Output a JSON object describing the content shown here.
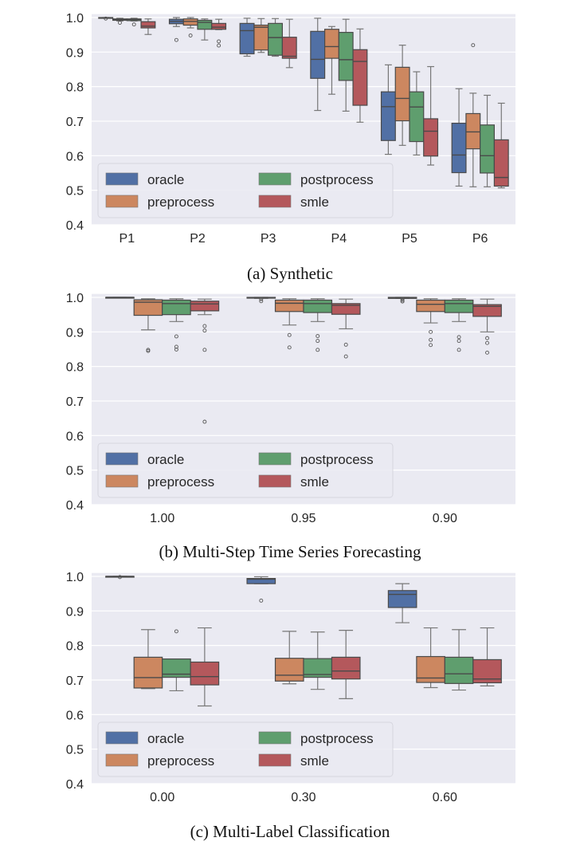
{
  "colors": {
    "oracle": "#5170a5",
    "preprocess": "#cc8760",
    "postprocess": "#5f9e6e",
    "smle": "#b4585c",
    "background": "#eaeaf2",
    "grid": "#ffffff"
  },
  "chart_data": [
    {
      "type": "box",
      "caption": "(a) Synthetic",
      "ylim": [
        0.4,
        1.01
      ],
      "yticks": [
        "0.4",
        "0.5",
        "0.6",
        "0.7",
        "0.8",
        "0.9",
        "1.0"
      ],
      "categories": [
        "P1",
        "P2",
        "P3",
        "P4",
        "P5",
        "P6"
      ],
      "legend": [
        "oracle",
        "preprocess",
        "postprocess",
        "smle"
      ],
      "legend_position": "lower-left",
      "grid": true,
      "series": [
        {
          "name": "oracle",
          "boxes": [
            {
              "lo": 0.998,
              "q1": 0.999,
              "med": 0.999,
              "q3": 1.0,
              "hi": 1.0,
              "out": [
                0.997
              ]
            },
            {
              "lo": 0.974,
              "q1": 0.982,
              "med": 0.989,
              "q3": 0.995,
              "hi": 1.0,
              "out": [
                0.935
              ]
            },
            {
              "lo": 0.888,
              "q1": 0.895,
              "med": 0.962,
              "q3": 0.983,
              "hi": 0.998,
              "out": []
            },
            {
              "lo": 0.731,
              "q1": 0.824,
              "med": 0.879,
              "q3": 0.96,
              "hi": 0.998,
              "out": []
            },
            {
              "lo": 0.604,
              "q1": 0.644,
              "med": 0.742,
              "q3": 0.785,
              "hi": 0.863,
              "out": []
            },
            {
              "lo": 0.512,
              "q1": 0.551,
              "med": 0.602,
              "q3": 0.694,
              "hi": 0.794,
              "out": []
            }
          ]
        },
        {
          "name": "preprocess",
          "boxes": [
            {
              "lo": 0.99,
              "q1": 0.992,
              "med": 0.994,
              "q3": 0.996,
              "hi": 0.998,
              "out": [
                0.985
              ]
            },
            {
              "lo": 0.97,
              "q1": 0.978,
              "med": 0.989,
              "q3": 0.996,
              "hi": 1.0,
              "out": [
                0.948
              ]
            },
            {
              "lo": 0.899,
              "q1": 0.906,
              "med": 0.972,
              "q3": 0.978,
              "hi": 0.997,
              "out": []
            },
            {
              "lo": 0.778,
              "q1": 0.882,
              "med": 0.916,
              "q3": 0.966,
              "hi": 0.974,
              "out": []
            },
            {
              "lo": 0.63,
              "q1": 0.701,
              "med": 0.766,
              "q3": 0.856,
              "hi": 0.92,
              "out": []
            },
            {
              "lo": 0.51,
              "q1": 0.62,
              "med": 0.669,
              "q3": 0.722,
              "hi": 0.781,
              "out": [
                0.92
              ]
            }
          ]
        },
        {
          "name": "postprocess",
          "boxes": [
            {
              "lo": 0.99,
              "q1": 0.991,
              "med": 0.994,
              "q3": 0.996,
              "hi": 0.998,
              "out": [
                0.98
              ]
            },
            {
              "lo": 0.935,
              "q1": 0.966,
              "med": 0.986,
              "q3": 0.992,
              "hi": 0.996,
              "out": []
            },
            {
              "lo": 0.888,
              "q1": 0.891,
              "med": 0.942,
              "q3": 0.983,
              "hi": 0.997,
              "out": []
            },
            {
              "lo": 0.729,
              "q1": 0.818,
              "med": 0.878,
              "q3": 0.957,
              "hi": 0.995,
              "out": []
            },
            {
              "lo": 0.602,
              "q1": 0.641,
              "med": 0.741,
              "q3": 0.785,
              "hi": 0.843,
              "out": []
            },
            {
              "lo": 0.51,
              "q1": 0.55,
              "med": 0.6,
              "q3": 0.689,
              "hi": 0.775,
              "out": []
            }
          ]
        },
        {
          "name": "smle",
          "boxes": [
            {
              "lo": 0.951,
              "q1": 0.97,
              "med": 0.975,
              "q3": 0.988,
              "hi": 0.996,
              "out": []
            },
            {
              "lo": 0.965,
              "q1": 0.966,
              "med": 0.972,
              "q3": 0.983,
              "hi": 0.995,
              "out": [
                0.931,
                0.919
              ]
            },
            {
              "lo": 0.855,
              "q1": 0.882,
              "med": 0.888,
              "q3": 0.943,
              "hi": 0.995,
              "out": []
            },
            {
              "lo": 0.697,
              "q1": 0.746,
              "med": 0.873,
              "q3": 0.907,
              "hi": 0.967,
              "out": []
            },
            {
              "lo": 0.573,
              "q1": 0.599,
              "med": 0.671,
              "q3": 0.707,
              "hi": 0.858,
              "out": []
            },
            {
              "lo": 0.507,
              "q1": 0.512,
              "med": 0.537,
              "q3": 0.646,
              "hi": 0.752,
              "out": []
            }
          ]
        }
      ]
    },
    {
      "type": "box",
      "caption": "(b) Multi-Step Time Series Forecasting",
      "ylim": [
        0.4,
        1.01
      ],
      "yticks": [
        "0.4",
        "0.5",
        "0.6",
        "0.7",
        "0.8",
        "0.9",
        "1.0"
      ],
      "categories": [
        "1.00",
        "0.95",
        "0.90"
      ],
      "legend": [
        "oracle",
        "preprocess",
        "postprocess",
        "smle"
      ],
      "legend_position": "lower-left",
      "grid": true,
      "series": [
        {
          "name": "oracle",
          "boxes": [
            {
              "lo": 0.999,
              "q1": 0.999,
              "med": 1.0,
              "q3": 1.0,
              "hi": 1.0,
              "out": []
            },
            {
              "lo": 0.997,
              "q1": 0.998,
              "med": 0.999,
              "q3": 1.0,
              "hi": 1.0,
              "out": [
                0.995,
                0.989
              ]
            },
            {
              "lo": 0.997,
              "q1": 0.997,
              "med": 0.999,
              "q3": 1.0,
              "hi": 1.0,
              "out": [
                0.995,
                0.991,
                0.988
              ]
            }
          ]
        },
        {
          "name": "preprocess",
          "boxes": [
            {
              "lo": 0.906,
              "q1": 0.948,
              "med": 0.986,
              "q3": 0.993,
              "hi": 0.996,
              "out": [
                0.848,
                0.845
              ]
            },
            {
              "lo": 0.92,
              "q1": 0.959,
              "med": 0.983,
              "q3": 0.992,
              "hi": 0.996,
              "out": [
                0.891,
                0.855
              ]
            },
            {
              "lo": 0.926,
              "q1": 0.959,
              "med": 0.98,
              "q3": 0.992,
              "hi": 0.996,
              "out": [
                0.9,
                0.877,
                0.862
              ]
            }
          ]
        },
        {
          "name": "postprocess",
          "boxes": [
            {
              "lo": 0.93,
              "q1": 0.95,
              "med": 0.982,
              "q3": 0.992,
              "hi": 0.996,
              "out": [
                0.887,
                0.857,
                0.849
              ]
            },
            {
              "lo": 0.93,
              "q1": 0.956,
              "med": 0.982,
              "q3": 0.992,
              "hi": 0.996,
              "out": [
                0.888,
                0.874,
                0.848
              ]
            },
            {
              "lo": 0.93,
              "q1": 0.956,
              "med": 0.982,
              "q3": 0.992,
              "hi": 0.996,
              "out": [
                0.885,
                0.874,
                0.848
              ]
            }
          ]
        },
        {
          "name": "smle",
          "boxes": [
            {
              "lo": 0.95,
              "q1": 0.961,
              "med": 0.981,
              "q3": 0.989,
              "hi": 0.995,
              "out": [
                0.917,
                0.904,
                0.848,
                0.64
              ]
            },
            {
              "lo": 0.909,
              "q1": 0.951,
              "med": 0.977,
              "q3": 0.982,
              "hi": 0.995,
              "out": [
                0.863,
                0.829
              ]
            },
            {
              "lo": 0.9,
              "q1": 0.945,
              "med": 0.974,
              "q3": 0.979,
              "hi": 0.995,
              "out": [
                0.882,
                0.868,
                0.84
              ]
            }
          ]
        }
      ]
    },
    {
      "type": "box",
      "caption": "(c) Multi-Label Classification",
      "ylim": [
        0.4,
        1.01
      ],
      "yticks": [
        "0.4",
        "0.5",
        "0.6",
        "0.7",
        "0.8",
        "0.9",
        "1.0"
      ],
      "categories": [
        "0.00",
        "0.30",
        "0.60"
      ],
      "legend": [
        "oracle",
        "preprocess",
        "postprocess",
        "smle"
      ],
      "legend_position": "lower-left",
      "grid": true,
      "series": [
        {
          "name": "oracle",
          "boxes": [
            {
              "lo": 1.0,
              "q1": 1.0,
              "med": 1.0,
              "q3": 1.0,
              "hi": 1.0,
              "out": [
                0.998
              ]
            },
            {
              "lo": 0.979,
              "q1": 0.979,
              "med": 0.992,
              "q3": 0.994,
              "hi": 0.999,
              "out": [
                0.93
              ]
            },
            {
              "lo": 0.866,
              "q1": 0.91,
              "med": 0.948,
              "q3": 0.959,
              "hi": 0.979,
              "out": []
            }
          ]
        },
        {
          "name": "preprocess",
          "boxes": [
            {
              "lo": 0.675,
              "q1": 0.677,
              "med": 0.707,
              "q3": 0.766,
              "hi": 0.846,
              "out": []
            },
            {
              "lo": 0.689,
              "q1": 0.697,
              "med": 0.714,
              "q3": 0.763,
              "hi": 0.841,
              "out": []
            },
            {
              "lo": 0.678,
              "q1": 0.693,
              "med": 0.706,
              "q3": 0.768,
              "hi": 0.851,
              "out": []
            }
          ]
        },
        {
          "name": "postprocess",
          "boxes": [
            {
              "lo": 0.669,
              "q1": 0.708,
              "med": 0.717,
              "q3": 0.761,
              "hi": 0.761,
              "out": [
                0.841
              ]
            },
            {
              "lo": 0.673,
              "q1": 0.708,
              "med": 0.716,
              "q3": 0.762,
              "hi": 0.839,
              "out": []
            },
            {
              "lo": 0.671,
              "q1": 0.69,
              "med": 0.718,
              "q3": 0.766,
              "hi": 0.846,
              "out": []
            }
          ]
        },
        {
          "name": "smle",
          "boxes": [
            {
              "lo": 0.625,
              "q1": 0.686,
              "med": 0.71,
              "q3": 0.752,
              "hi": 0.851,
              "out": []
            },
            {
              "lo": 0.646,
              "q1": 0.703,
              "med": 0.726,
              "q3": 0.766,
              "hi": 0.844,
              "out": []
            },
            {
              "lo": 0.683,
              "q1": 0.692,
              "med": 0.703,
              "q3": 0.759,
              "hi": 0.851,
              "out": []
            }
          ]
        }
      ]
    }
  ]
}
